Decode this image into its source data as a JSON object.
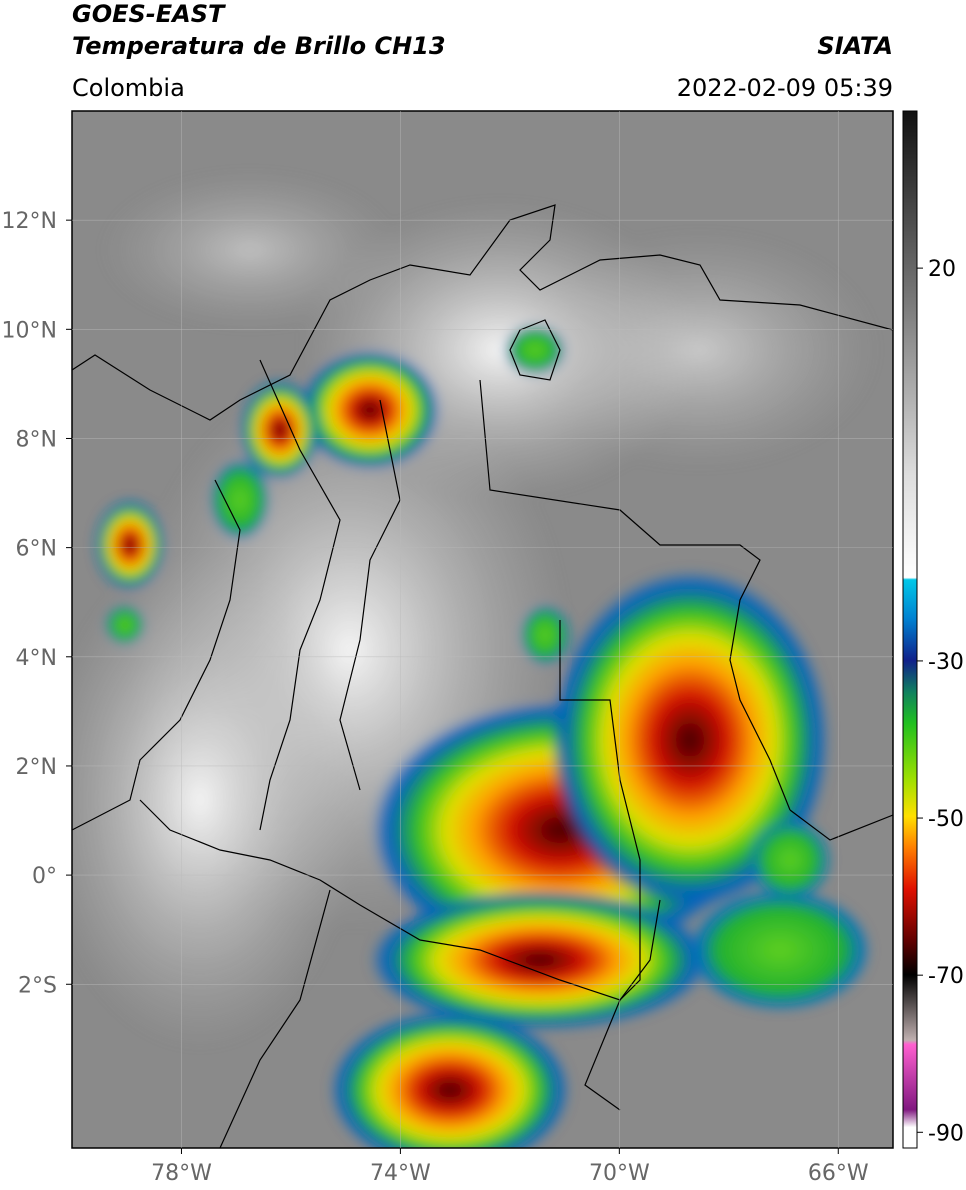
{
  "header": {
    "title": "GOES-EAST",
    "subtitle": "Temperatura de Brillo CH13",
    "agency": "SIATA",
    "region": "Colombia",
    "datetime": "2022-02-09 05:39"
  },
  "map": {
    "xlim": [
      -80,
      -65
    ],
    "ylim": [
      -5,
      14
    ],
    "xticks": [
      {
        "value": -78,
        "label": "78°W"
      },
      {
        "value": -74,
        "label": "74°W"
      },
      {
        "value": -70,
        "label": "70°W"
      },
      {
        "value": -66,
        "label": "66°W"
      }
    ],
    "yticks": [
      {
        "value": 12,
        "label": "12°N"
      },
      {
        "value": 10,
        "label": "10°N"
      },
      {
        "value": 8,
        "label": "8°N"
      },
      {
        "value": 6,
        "label": "6°N"
      },
      {
        "value": 4,
        "label": "4°N"
      },
      {
        "value": 2,
        "label": "2°N"
      },
      {
        "value": 0,
        "label": "0°"
      },
      {
        "value": -2,
        "label": "2°S"
      }
    ]
  },
  "colorbar": {
    "ylim": [
      -92,
      40
    ],
    "ticks": [
      20,
      -30,
      -50,
      -70,
      -90
    ]
  }
}
